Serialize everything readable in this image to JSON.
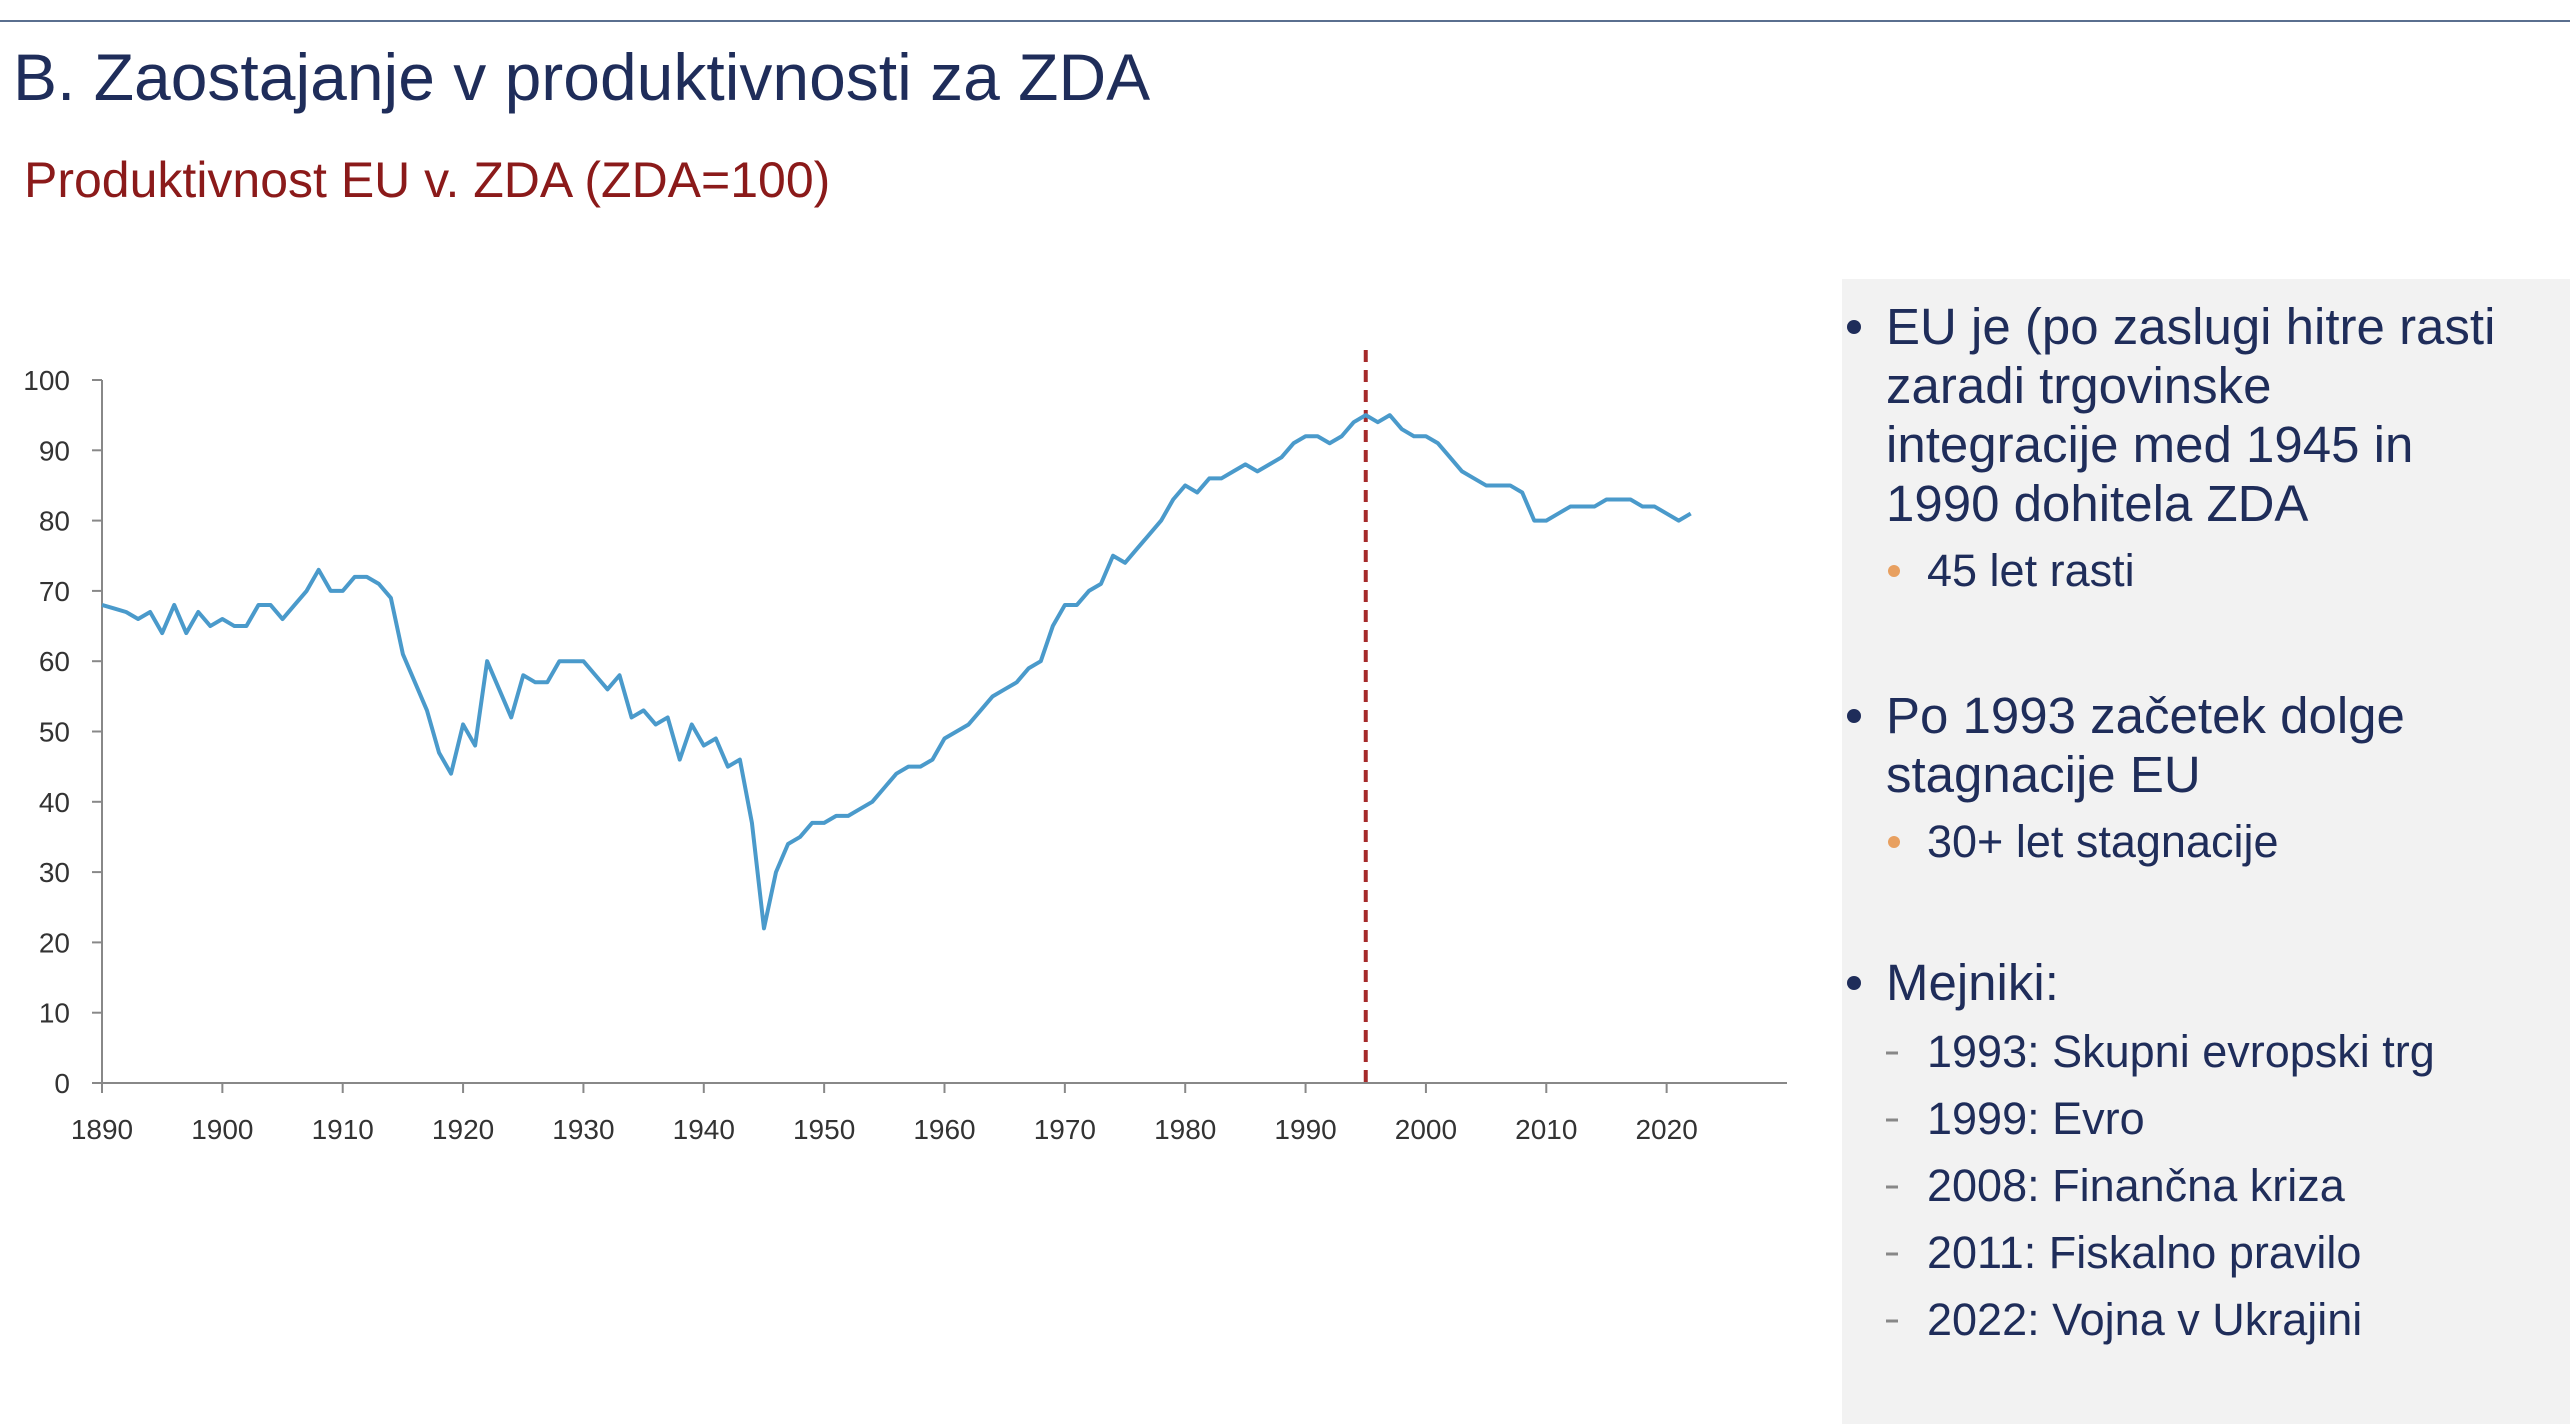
{
  "slide": {
    "title": "B. Zaostajanje v produktivnosti za ZDA",
    "subtitle": "Produktivnost EU v. ZDA (ZDA=100)",
    "bullets": [
      {
        "lines": [
          "EU je (po zaslugi hitre rasti",
          "zaradi trgovinske",
          "integracije med 1945 in",
          "1990 dohitela ZDA"
        ],
        "sub": [
          "45 let rasti"
        ]
      },
      {
        "lines": [
          "Po 1993 začetek dolge",
          "stagnacije EU"
        ],
        "sub": [
          "30+ let stagnacije"
        ]
      },
      {
        "lines": [
          "Mejniki:"
        ],
        "items": [
          "1993: Skupni evropski trg",
          "1999: Evro",
          "2008: Finančna kriza",
          "2011: Fiskalno pravilo",
          "2022: Vojna v Ukrajini"
        ]
      }
    ]
  },
  "chart_data": {
    "type": "line",
    "x": [
      1890,
      1891,
      1892,
      1893,
      1894,
      1895,
      1896,
      1897,
      1898,
      1899,
      1900,
      1901,
      1902,
      1903,
      1904,
      1905,
      1906,
      1907,
      1908,
      1909,
      1910,
      1911,
      1912,
      1913,
      1914,
      1915,
      1916,
      1917,
      1918,
      1919,
      1920,
      1921,
      1922,
      1923,
      1924,
      1925,
      1926,
      1927,
      1928,
      1929,
      1930,
      1931,
      1932,
      1933,
      1934,
      1935,
      1936,
      1937,
      1938,
      1939,
      1940,
      1941,
      1942,
      1943,
      1944,
      1945,
      1946,
      1947,
      1948,
      1949,
      1950,
      1951,
      1952,
      1953,
      1954,
      1955,
      1956,
      1957,
      1958,
      1959,
      1960,
      1961,
      1962,
      1963,
      1964,
      1965,
      1966,
      1967,
      1968,
      1969,
      1970,
      1971,
      1972,
      1973,
      1974,
      1975,
      1976,
      1977,
      1978,
      1979,
      1980,
      1981,
      1982,
      1983,
      1984,
      1985,
      1986,
      1987,
      1988,
      1989,
      1990,
      1991,
      1992,
      1993,
      1994,
      1995,
      1996,
      1997,
      1998,
      1999,
      2000,
      2001,
      2002,
      2003,
      2004,
      2005,
      2006,
      2007,
      2008,
      2009,
      2010,
      2011,
      2012,
      2013,
      2014,
      2015,
      2016,
      2017,
      2018,
      2019,
      2020,
      2021,
      2022
    ],
    "series": [
      {
        "name": "EU",
        "color": "#4a9acb",
        "values": [
          68,
          67.5,
          67,
          66,
          67,
          64,
          68,
          64,
          67,
          65,
          66,
          65,
          65,
          68,
          68,
          66,
          68,
          70,
          73,
          70,
          70,
          72,
          72,
          71,
          69,
          61,
          57,
          53,
          47,
          44,
          51,
          48,
          60,
          56,
          52,
          58,
          57,
          57,
          60,
          60,
          60,
          58,
          56,
          58,
          52,
          53,
          51,
          52,
          46,
          51,
          48,
          49,
          45,
          46,
          37,
          22,
          30,
          34,
          35,
          37,
          37,
          38,
          38,
          39,
          40,
          42,
          44,
          45,
          45,
          46,
          49,
          50,
          51,
          53,
          55,
          56,
          57,
          59,
          60,
          65,
          68,
          68,
          70,
          71,
          75,
          74,
          76,
          78,
          80,
          83,
          85,
          84,
          86,
          86,
          87,
          88,
          87,
          88,
          89,
          91,
          92,
          92,
          91,
          92,
          94,
          95,
          94,
          95,
          93,
          92,
          92,
          91,
          89,
          87,
          86,
          85,
          85,
          85,
          84,
          80,
          80,
          81,
          82,
          82,
          82,
          83,
          83,
          83,
          82,
          82,
          81,
          80,
          81
        ]
      }
    ],
    "xlim": [
      1890,
      2030
    ],
    "xticks": [
      1890,
      1900,
      1910,
      1920,
      1930,
      1940,
      1950,
      1960,
      1970,
      1980,
      1990,
      2000,
      2010,
      2020
    ],
    "ylim": [
      0,
      100
    ],
    "yticks": [
      0,
      10,
      20,
      30,
      40,
      50,
      60,
      70,
      80,
      90,
      100
    ],
    "reference_line": {
      "x": 1995,
      "color": "#a52a2a"
    }
  }
}
